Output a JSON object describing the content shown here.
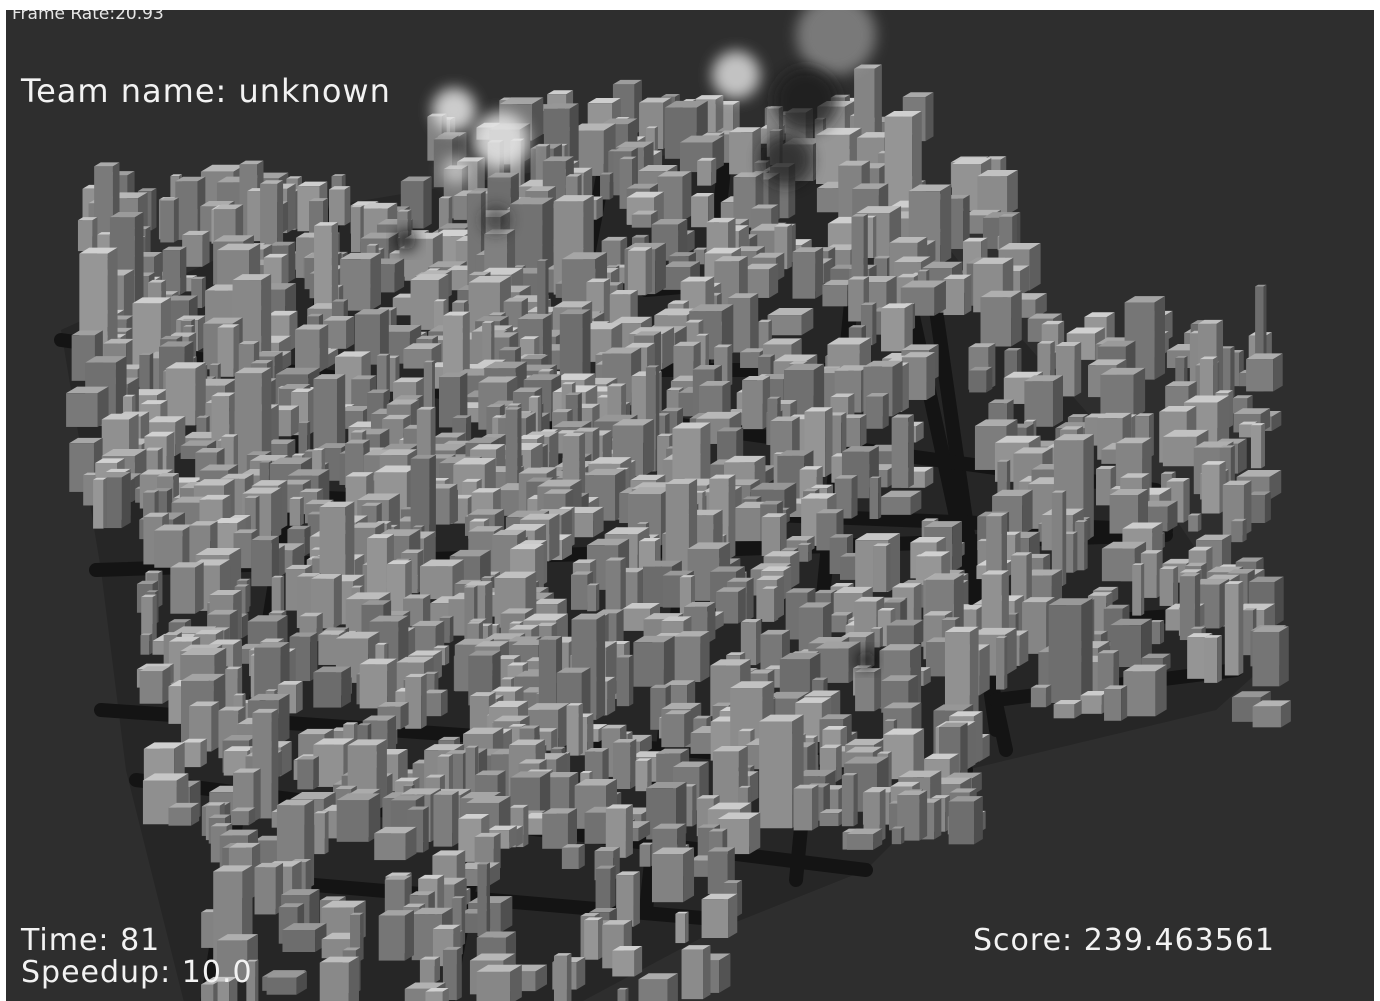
{
  "hud": {
    "frame_rate_label": "Frame Rate:",
    "frame_rate_value": "20.93",
    "team_label": "Team name:",
    "team_value": "unknown",
    "time_label": "Time:",
    "time_value": "81",
    "speedup_label": "Speedup:",
    "speedup_value": "10.0",
    "score_label": "Score:",
    "score_value": "239.463561"
  },
  "colors": {
    "background": "#2e2e2e",
    "ground": "#262626",
    "road": "#141414",
    "building_light": "#bdbdbd",
    "building_dark": "#6a6a6a",
    "smoke_white": "#e8e8e8",
    "smoke_black": "#1a1a1a",
    "hud_text": "#f2f2f2"
  }
}
